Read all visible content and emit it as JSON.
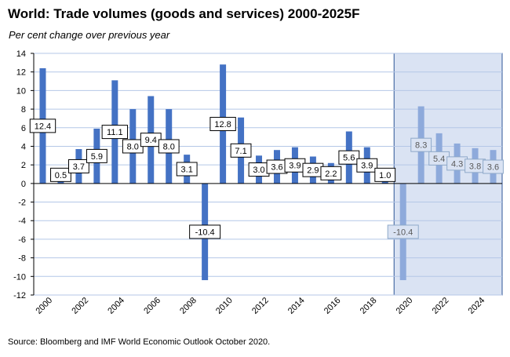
{
  "title": "World: Trade volumes (goods and services) 2000-2025F",
  "subtitle": "Per cent change over previous year",
  "source": "Source: Bloomberg and IMF World Economic Outlook October 2020.",
  "chart_data": {
    "type": "bar",
    "x": [
      2000,
      2001,
      2002,
      2003,
      2004,
      2005,
      2006,
      2007,
      2008,
      2009,
      2010,
      2011,
      2012,
      2013,
      2014,
      2015,
      2016,
      2017,
      2018,
      2019,
      2020,
      2021,
      2022,
      2023,
      2024,
      2025
    ],
    "values": [
      12.4,
      0.5,
      3.7,
      5.9,
      11.1,
      8.0,
      9.4,
      8.0,
      3.1,
      -10.4,
      12.8,
      7.1,
      3.0,
      3.6,
      3.9,
      2.9,
      2.2,
      5.6,
      3.9,
      1.0,
      -10.4,
      8.3,
      5.4,
      4.3,
      3.8,
      3.6
    ],
    "data_labels": [
      "12.4",
      "0.5",
      "3.7",
      "5.9",
      "11.1",
      "8.0",
      "9.4",
      "8.0",
      "3.1",
      "-10.4",
      "12.8",
      "7.1",
      "3.0",
      "3.6",
      "3.9",
      "2.9",
      "2.2",
      "5.6",
      "3.9",
      "1.0",
      "-10.4",
      "8.3",
      "5.4",
      "4.3",
      "3.8",
      "3.6"
    ],
    "forecast_from": 2020,
    "x_tick_labels": [
      "2000",
      "2002",
      "2004",
      "2006",
      "2008",
      "2010",
      "2012",
      "2014",
      "2016",
      "2018",
      "2020",
      "2022",
      "2024"
    ],
    "y_tick_labels": [
      "14",
      "12",
      "10",
      "8",
      "6",
      "4",
      "2",
      "0",
      "-2",
      "-4",
      "-6",
      "-8",
      "-10",
      "-12"
    ],
    "ylim": [
      -12,
      14
    ],
    "grid": true,
    "colors": {
      "actual": "#4472c4",
      "forecast": "#8eaadb",
      "forecast_shade": "#dae3f3",
      "forecast_border": "#2f5597",
      "label_border_actual": "#000000",
      "label_border_forecast": "#8ea9c9",
      "label_text_forecast": "#595959",
      "grid": "#b4c7e7"
    }
  }
}
